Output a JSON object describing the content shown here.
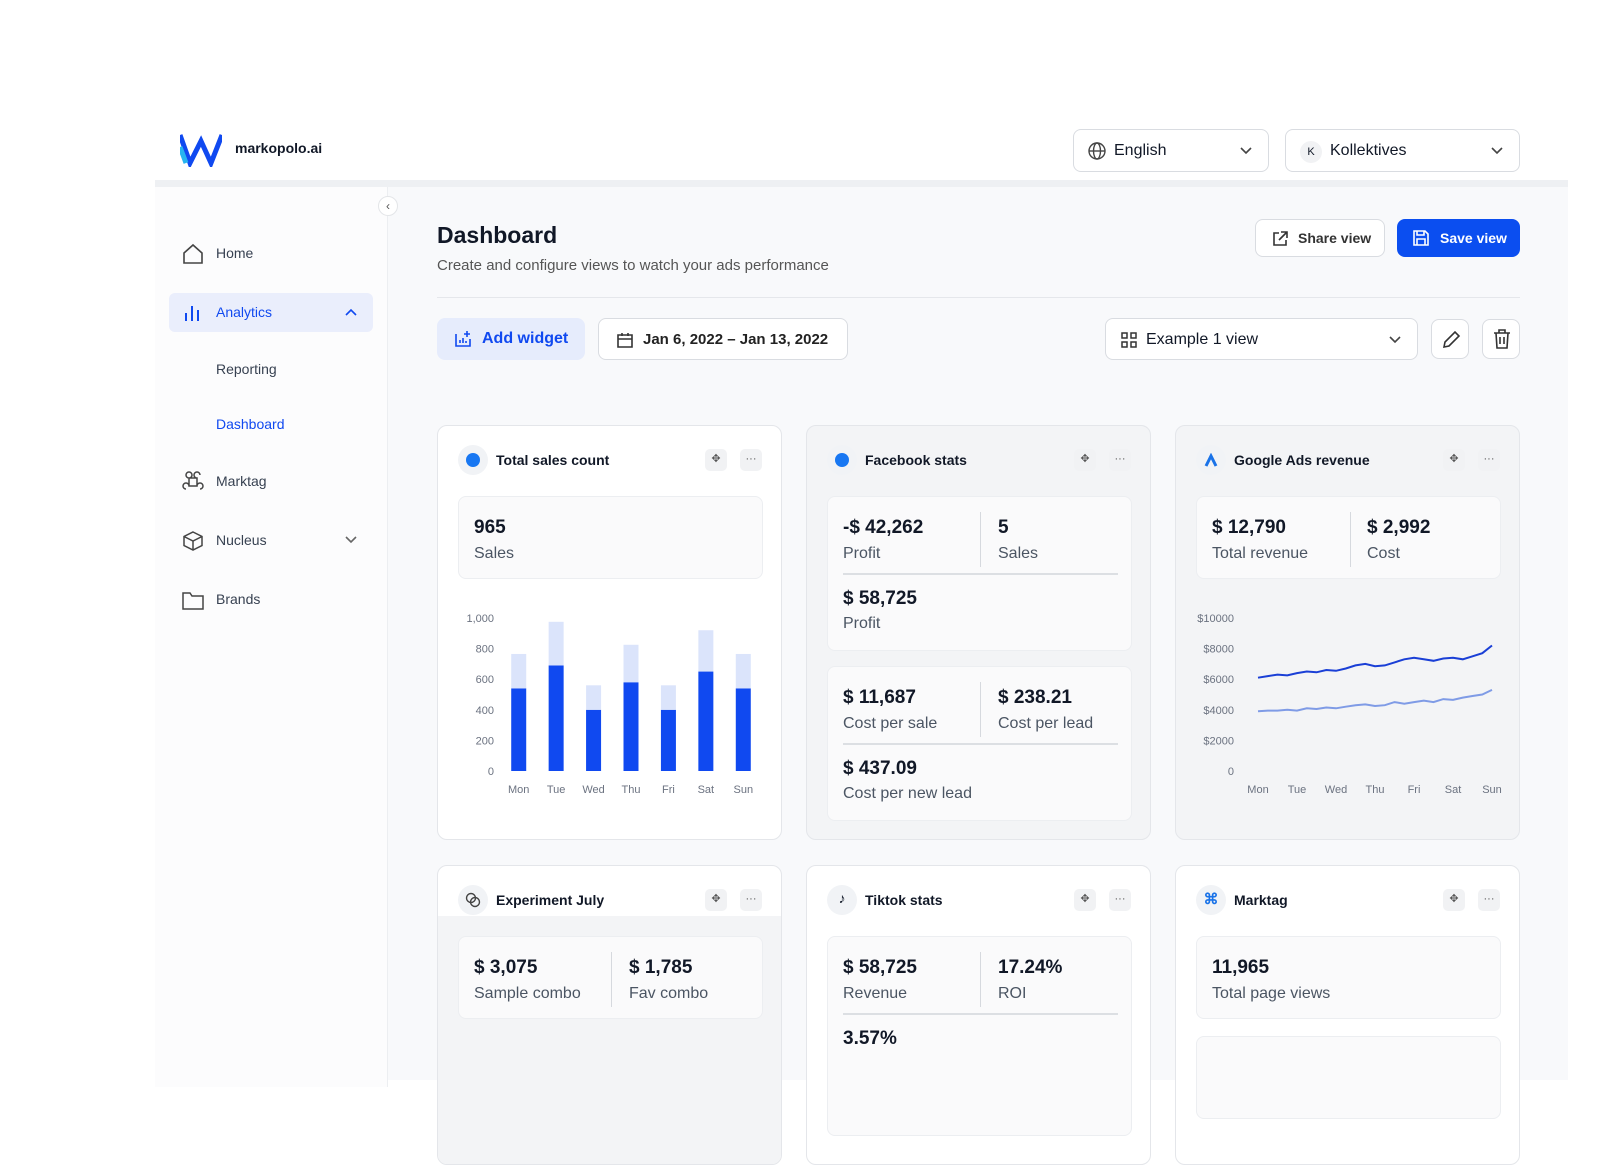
{
  "header": {
    "brand": "markopolo.ai",
    "language": "English",
    "account_initial": "K",
    "account": "Kollektives"
  },
  "sidebar": {
    "items": [
      "Home",
      "Analytics",
      "Reporting",
      "Dashboard",
      "Marktag",
      "Nucleus",
      "Brands"
    ]
  },
  "page": {
    "title": "Dashboard",
    "subtitle": "Create and configure views to watch your ads performance",
    "share": "Share view",
    "save": "Save view",
    "add_widget": "Add widget",
    "date_range": "Jan 6, 2022 – Jan 13, 2022",
    "view": "Example 1 view"
  },
  "widgets": [
    {
      "title": "Total sales count",
      "stats": [
        {
          "value": "965",
          "label": "Sales"
        }
      ]
    },
    {
      "title": "Facebook stats",
      "stats": [
        {
          "value": "-$ 42,262",
          "label": "Profit"
        },
        {
          "value": "5",
          "label": "Sales"
        },
        {
          "value": "$ 58,725",
          "label": "Profit"
        },
        {
          "value": "$ 11,687",
          "label": "Cost per sale"
        },
        {
          "value": "$ 238.21",
          "label": "Cost per lead"
        },
        {
          "value": "$ 437.09",
          "label": "Cost per new lead"
        }
      ]
    },
    {
      "title": "Google Ads revenue",
      "stats": [
        {
          "value": "$ 12,790",
          "label": "Total revenue"
        },
        {
          "value": "$ 2,992",
          "label": "Cost"
        }
      ]
    },
    {
      "title": "Experiment July",
      "stats": [
        {
          "value": "$ 3,075",
          "label": "Sample combo"
        },
        {
          "value": "$ 1,785",
          "label": "Fav combo"
        }
      ]
    },
    {
      "title": "Tiktok stats",
      "stats": [
        {
          "value": "$ 58,725",
          "label": "Revenue"
        },
        {
          "value": "17.24%",
          "label": "ROI"
        },
        {
          "value": "3.57%"
        }
      ]
    },
    {
      "title": "Marktag",
      "stats": [
        {
          "value": "11,965",
          "label": "Total page views"
        }
      ]
    }
  ],
  "chart_data": [
    {
      "type": "bar",
      "stacked": true,
      "grid": false,
      "categories": [
        "Mon",
        "Tue",
        "Wed",
        "Thu",
        "Fri",
        "Sat",
        "Sun"
      ],
      "series": [
        {
          "color": "#1049f0",
          "values": [
            540,
            690,
            400,
            580,
            400,
            650,
            540
          ]
        },
        {
          "color": "#dbe4fb",
          "values": [
            225,
            285,
            160,
            245,
            160,
            270,
            225
          ]
        }
      ],
      "ylim": [
        0,
        1000
      ],
      "yticks": [
        0,
        200,
        400,
        600,
        800,
        {
          "value": 1000,
          "label": "1,000"
        }
      ]
    },
    {
      "type": "line",
      "grid": false,
      "x": [
        0,
        0.25,
        0.5,
        0.75,
        1,
        1.25,
        1.5,
        1.75,
        2,
        2.25,
        2.5,
        2.75,
        3,
        3.25,
        3.5,
        3.75,
        4,
        4.25,
        4.5,
        4.75,
        5,
        5.25,
        5.5,
        5.75,
        6
      ],
      "xlim": [
        0,
        6
      ],
      "xticks": [
        {
          "value": 0,
          "label": "Mon"
        },
        {
          "value": 1,
          "label": "Tue"
        },
        {
          "value": 2,
          "label": "Wed"
        },
        {
          "value": 3,
          "label": "Thu"
        },
        {
          "value": 4,
          "label": "Fri"
        },
        {
          "value": 5,
          "label": "Sat"
        },
        {
          "value": 6,
          "label": "Sun"
        }
      ],
      "series": [
        {
          "color": "#1a3fd6",
          "values": [
            6100,
            6200,
            6300,
            6250,
            6400,
            6500,
            6450,
            6600,
            6550,
            6700,
            6900,
            7000,
            6850,
            6900,
            7100,
            7300,
            7400,
            7300,
            7200,
            7350,
            7400,
            7300,
            7500,
            7700,
            8200
          ]
        },
        {
          "color": "#7f9be6",
          "values": [
            3900,
            3950,
            3950,
            4000,
            3950,
            4100,
            4050,
            4150,
            4100,
            4200,
            4300,
            4350,
            4250,
            4300,
            4500,
            4400,
            4500,
            4600,
            4500,
            4700,
            4650,
            4800,
            4900,
            5000,
            5300
          ]
        }
      ],
      "ylim": [
        0,
        10000
      ],
      "yticks": [
        0,
        {
          "value": 2000,
          "label": "$2000"
        },
        {
          "value": 4000,
          "label": "$4000"
        },
        {
          "value": 6000,
          "label": "$6000"
        },
        {
          "value": 8000,
          "label": "$8000"
        },
        {
          "value": 10000,
          "label": "$10000"
        }
      ]
    }
  ]
}
